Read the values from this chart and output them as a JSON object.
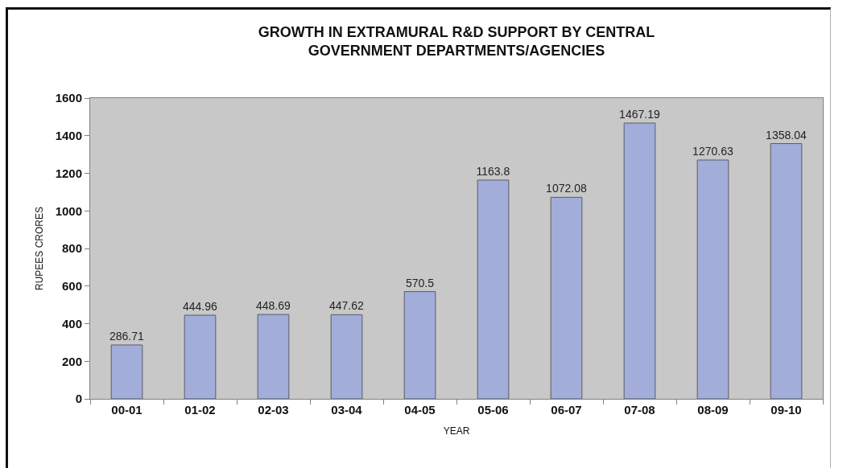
{
  "chart_data": {
    "type": "bar",
    "title": "GROWTH IN EXTRAMURAL R&D SUPPORT BY CENTRAL\nGOVERNMENT DEPARTMENTS/AGENCIES",
    "xlabel": "YEAR",
    "ylabel": "RUPEES CRORES",
    "categories": [
      "00-01",
      "01-02",
      "02-03",
      "03-04",
      "04-05",
      "05-06",
      "06-07",
      "07-08",
      "08-09",
      "09-10"
    ],
    "values": [
      286.71,
      444.96,
      448.69,
      447.62,
      570.5,
      1163.8,
      1072.08,
      1467.19,
      1270.63,
      1358.04
    ],
    "color": "#a2aed9",
    "ylim": [
      0,
      1600
    ],
    "yticks": [
      0,
      200,
      400,
      600,
      800,
      1000,
      1200,
      1400,
      1600
    ],
    "grid": false,
    "data_labels": true
  }
}
